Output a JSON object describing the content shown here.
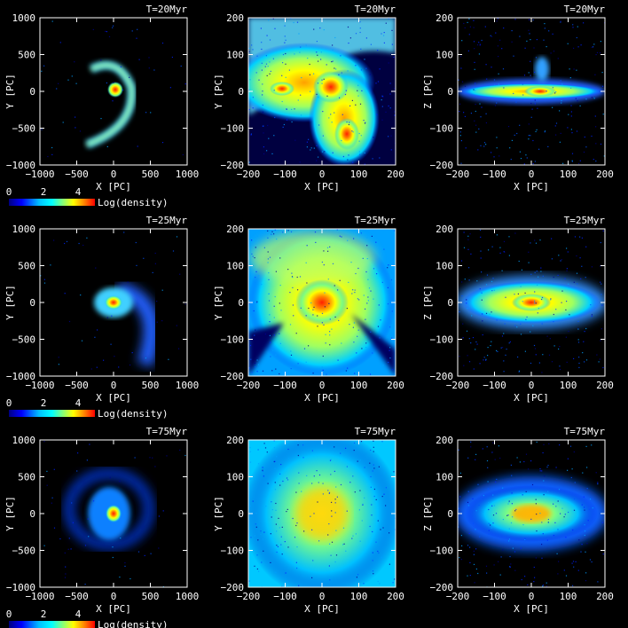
{
  "rows": [
    {
      "time_label": "T=20Myr",
      "panels": [
        {
          "id": "xy-wide",
          "time_label": "T=20Myr",
          "xlabel": "X [PC]",
          "ylabel": "Y [PC]",
          "xticks": [
            "−1000",
            "−500",
            "0",
            "500",
            "1000"
          ],
          "yticks": [
            "1000",
            "500",
            "0",
            "−500",
            "−1000"
          ]
        },
        {
          "id": "xy-zoom",
          "time_label": "T=20Myr",
          "xlabel": "X [PC]",
          "ylabel": "Y [PC]",
          "xticks": [
            "−200",
            "−100",
            "0",
            "100",
            "200"
          ],
          "yticks": [
            "200",
            "100",
            "0",
            "−100",
            "−200"
          ]
        },
        {
          "id": "xz-zoom",
          "time_label": "T=20Myr",
          "xlabel": "X [PC]",
          "ylabel": "Z [PC]",
          "xticks": [
            "−200",
            "−100",
            "0",
            "100",
            "200"
          ],
          "yticks": [
            "200",
            "100",
            "0",
            "−100",
            "−200"
          ]
        }
      ],
      "colorbar": {
        "ticks": [
          "0",
          "2",
          "4"
        ],
        "label": "Log(density)"
      }
    },
    {
      "time_label": "T=25Myr",
      "panels": [
        {
          "id": "xy-wide",
          "time_label": "T=25Myr",
          "xlabel": "X [PC]",
          "ylabel": "Y [PC]",
          "xticks": [
            "−1000",
            "−500",
            "0",
            "500",
            "1000"
          ],
          "yticks": [
            "1000",
            "500",
            "0",
            "−500",
            "−1000"
          ]
        },
        {
          "id": "xy-zoom",
          "time_label": "T=25Myr",
          "xlabel": "X [PC]",
          "ylabel": "Y [PC]",
          "xticks": [
            "−200",
            "−100",
            "0",
            "100",
            "200"
          ],
          "yticks": [
            "200",
            "100",
            "0",
            "−100",
            "−200"
          ]
        },
        {
          "id": "xz-zoom",
          "time_label": "T=25Myr",
          "xlabel": "X [PC]",
          "ylabel": "Z [PC]",
          "xticks": [
            "−200",
            "−100",
            "0",
            "100",
            "200"
          ],
          "yticks": [
            "200",
            "100",
            "0",
            "−100",
            "−200"
          ]
        }
      ],
      "colorbar": {
        "ticks": [
          "0",
          "2",
          "4"
        ],
        "label": "Log(density)"
      }
    },
    {
      "time_label": "T=75Myr",
      "panels": [
        {
          "id": "xy-wide",
          "time_label": "T=75Myr",
          "xlabel": "X [PC]",
          "ylabel": "Y [PC]",
          "xticks": [
            "−1000",
            "−500",
            "0",
            "500",
            "1000"
          ],
          "yticks": [
            "1000",
            "500",
            "0",
            "−500",
            "−1000"
          ]
        },
        {
          "id": "xy-zoom",
          "time_label": "T=75Myr",
          "xlabel": "X [PC]",
          "ylabel": "Y [PC]",
          "xticks": [
            "−200",
            "−100",
            "0",
            "100",
            "200"
          ],
          "yticks": [
            "200",
            "100",
            "0",
            "−100",
            "−200"
          ]
        },
        {
          "id": "xz-zoom",
          "time_label": "T=75Myr",
          "xlabel": "X [PC]",
          "ylabel": "Z [PC]",
          "xticks": [
            "−200",
            "−100",
            "0",
            "100",
            "200"
          ],
          "yticks": [
            "200",
            "100",
            "0",
            "−100",
            "−200"
          ]
        }
      ],
      "colorbar": {
        "ticks": [
          "0",
          "2",
          "4"
        ],
        "label": "Log(density)"
      }
    }
  ],
  "colormap": [
    "#000080",
    "#0000ff",
    "#00bfff",
    "#00ffff",
    "#7fff7f",
    "#ffff00",
    "#ff8000",
    "#ff0000"
  ],
  "background": "#000000"
}
